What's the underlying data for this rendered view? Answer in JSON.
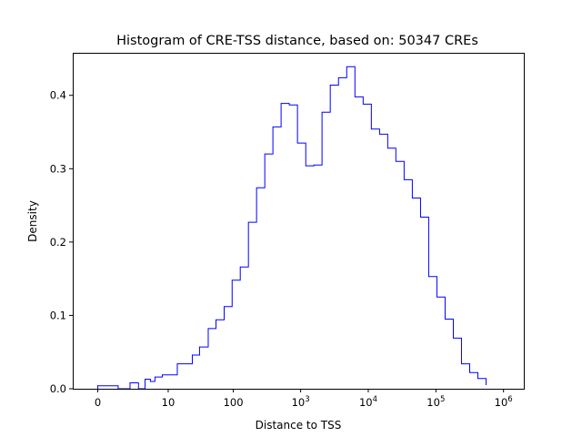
{
  "chart_data": {
    "type": "histogram-step",
    "title": "Histogram of CRE-TSS distance, based on: 50347 CREs",
    "xlabel": "Distance to TSS",
    "ylabel": "Density",
    "x_scale": "symlog",
    "xlim": [
      -0.37,
      6.3
    ],
    "ylim": [
      0,
      0.458
    ],
    "x_ticks": [
      {
        "value": 0,
        "label": "0",
        "base": "0",
        "exp": ""
      },
      {
        "value": 10,
        "label": "10",
        "base": "10",
        "exp": ""
      },
      {
        "value": 100,
        "label": "100",
        "base": "100",
        "exp": ""
      },
      {
        "value": 1000,
        "label": "10^3",
        "base": "10",
        "exp": "3"
      },
      {
        "value": 10000,
        "label": "10^4",
        "base": "10",
        "exp": "4"
      },
      {
        "value": 100000,
        "label": "10^5",
        "base": "10",
        "exp": "5"
      },
      {
        "value": 1000000,
        "label": "10^6",
        "base": "10",
        "exp": "6"
      }
    ],
    "y_ticks": [
      0.0,
      0.1,
      0.2,
      0.3,
      0.4
    ],
    "y_tick_labels": [
      "0.0",
      "0.1",
      "0.2",
      "0.3",
      "0.4"
    ],
    "grid": false,
    "line_color": "#0000ff",
    "bin_edges": [
      0,
      1,
      2,
      3,
      4,
      5,
      6,
      8,
      10,
      14,
      19,
      24,
      31,
      42,
      55,
      73,
      96,
      127,
      168,
      222,
      294,
      388,
      513,
      678,
      897,
      1190,
      1570,
      2070,
      2740,
      3630,
      4800,
      6350,
      8400,
      11100,
      14700,
      19400,
      25600,
      33900,
      44800,
      59300,
      78300,
      103500,
      136900,
      181000,
      239000,
      316000,
      418000,
      553000
    ],
    "densities": [
      0.004,
      0.0,
      0.008,
      0.0,
      0.013,
      0.01,
      0.016,
      0.019,
      0.019,
      0.034,
      0.034,
      0.046,
      0.057,
      0.082,
      0.094,
      0.112,
      0.148,
      0.166,
      0.227,
      0.274,
      0.32,
      0.357,
      0.389,
      0.387,
      0.335,
      0.304,
      0.305,
      0.377,
      0.414,
      0.424,
      0.439,
      0.398,
      0.388,
      0.354,
      0.347,
      0.328,
      0.31,
      0.285,
      0.26,
      0.234,
      0.153,
      0.125,
      0.095,
      0.069,
      0.034,
      0.022,
      0.014,
      0.005
    ]
  }
}
